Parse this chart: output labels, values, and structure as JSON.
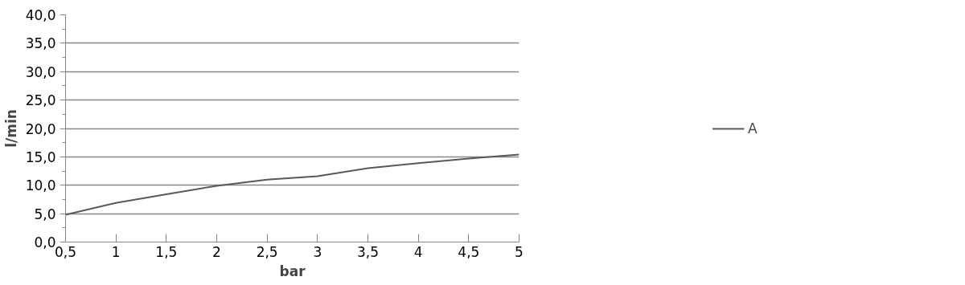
{
  "chart_data": {
    "type": "line",
    "xlabel": "bar",
    "ylabel": "l/min",
    "x": [
      0.5,
      1,
      1.5,
      2,
      2.5,
      3,
      3.5,
      4,
      4.5,
      5
    ],
    "series": [
      {
        "name": "A",
        "color": "#595959",
        "values": [
          4.8,
          6.9,
          8.4,
          9.9,
          11.0,
          11.6,
          13.0,
          13.9,
          14.7,
          15.4
        ]
      }
    ],
    "xlim": [
      0.5,
      5
    ],
    "xticks": [
      {
        "value": 0.5,
        "label": "0,5"
      },
      1,
      {
        "value": 1.5,
        "label": "1,5"
      },
      2,
      {
        "value": 2.5,
        "label": "2,5"
      },
      3,
      {
        "value": 3.5,
        "label": "3,5"
      },
      4,
      {
        "value": 4.5,
        "label": "4,5"
      },
      5
    ],
    "ylim": [
      0,
      40
    ],
    "yticks": [
      {
        "value": 0,
        "label": "0,0"
      },
      {
        "value": 5,
        "label": "5,0"
      },
      {
        "value": 10,
        "label": "10,0"
      },
      {
        "value": 15,
        "label": "15,0"
      },
      {
        "value": 20,
        "label": "20,0"
      },
      {
        "value": 25,
        "label": "25,0"
      },
      {
        "value": 30,
        "label": "30,0"
      },
      {
        "value": 35,
        "label": "35,0"
      },
      {
        "value": 40,
        "label": "40,0"
      }
    ],
    "grid": "y",
    "legend": "right",
    "marker": "none",
    "line_style": "solid"
  }
}
